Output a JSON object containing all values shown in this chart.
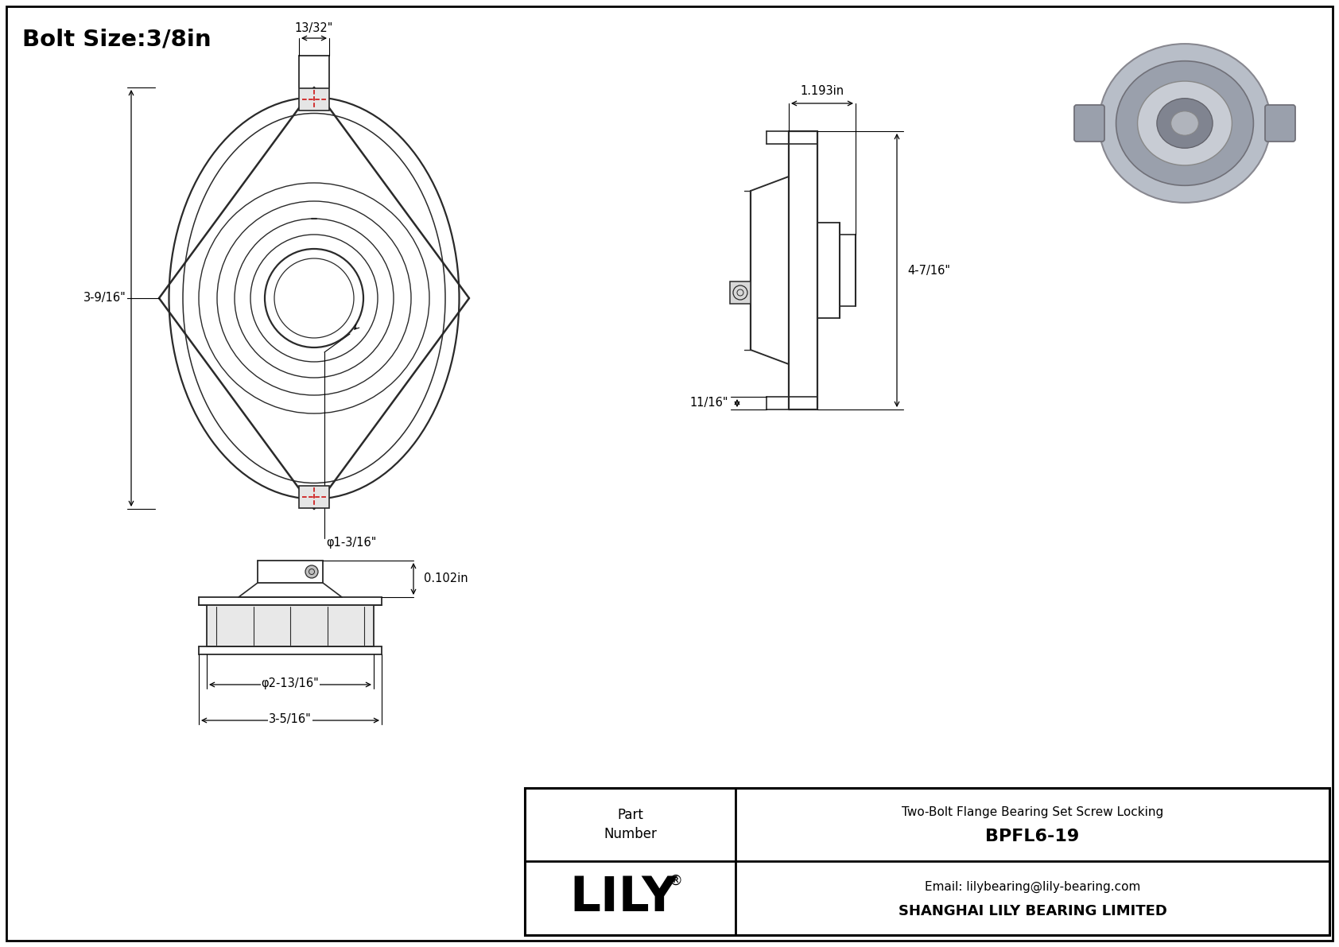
{
  "title": "Bolt Size:3/8in",
  "bg_color": "#f2f2f2",
  "border_color": "#000000",
  "drawing_color": "#2a2a2a",
  "dim_color": "#000000",
  "red_dash_color": "#cc0000",
  "company": "SHANGHAI LILY BEARING LIMITED",
  "email": "Email: lilybearing@lily-bearing.com",
  "part_number": "BPFL6-19",
  "description": "Two-Bolt Flange Bearing Set Screw Locking",
  "brand": "LILY",
  "dims": {
    "front_width_label": "13/32\"",
    "front_height_label": "3-9/16\"",
    "front_bore_label": "φ1-3/16\"",
    "side_width_label": "1.193in",
    "side_height_label": "4-7/16\"",
    "side_bottom_label": "11/16\"",
    "bottom_depth_label": "0.102in",
    "bottom_bore_label": "φ2-13/16\"",
    "bottom_width_label": "3-5/16\""
  }
}
